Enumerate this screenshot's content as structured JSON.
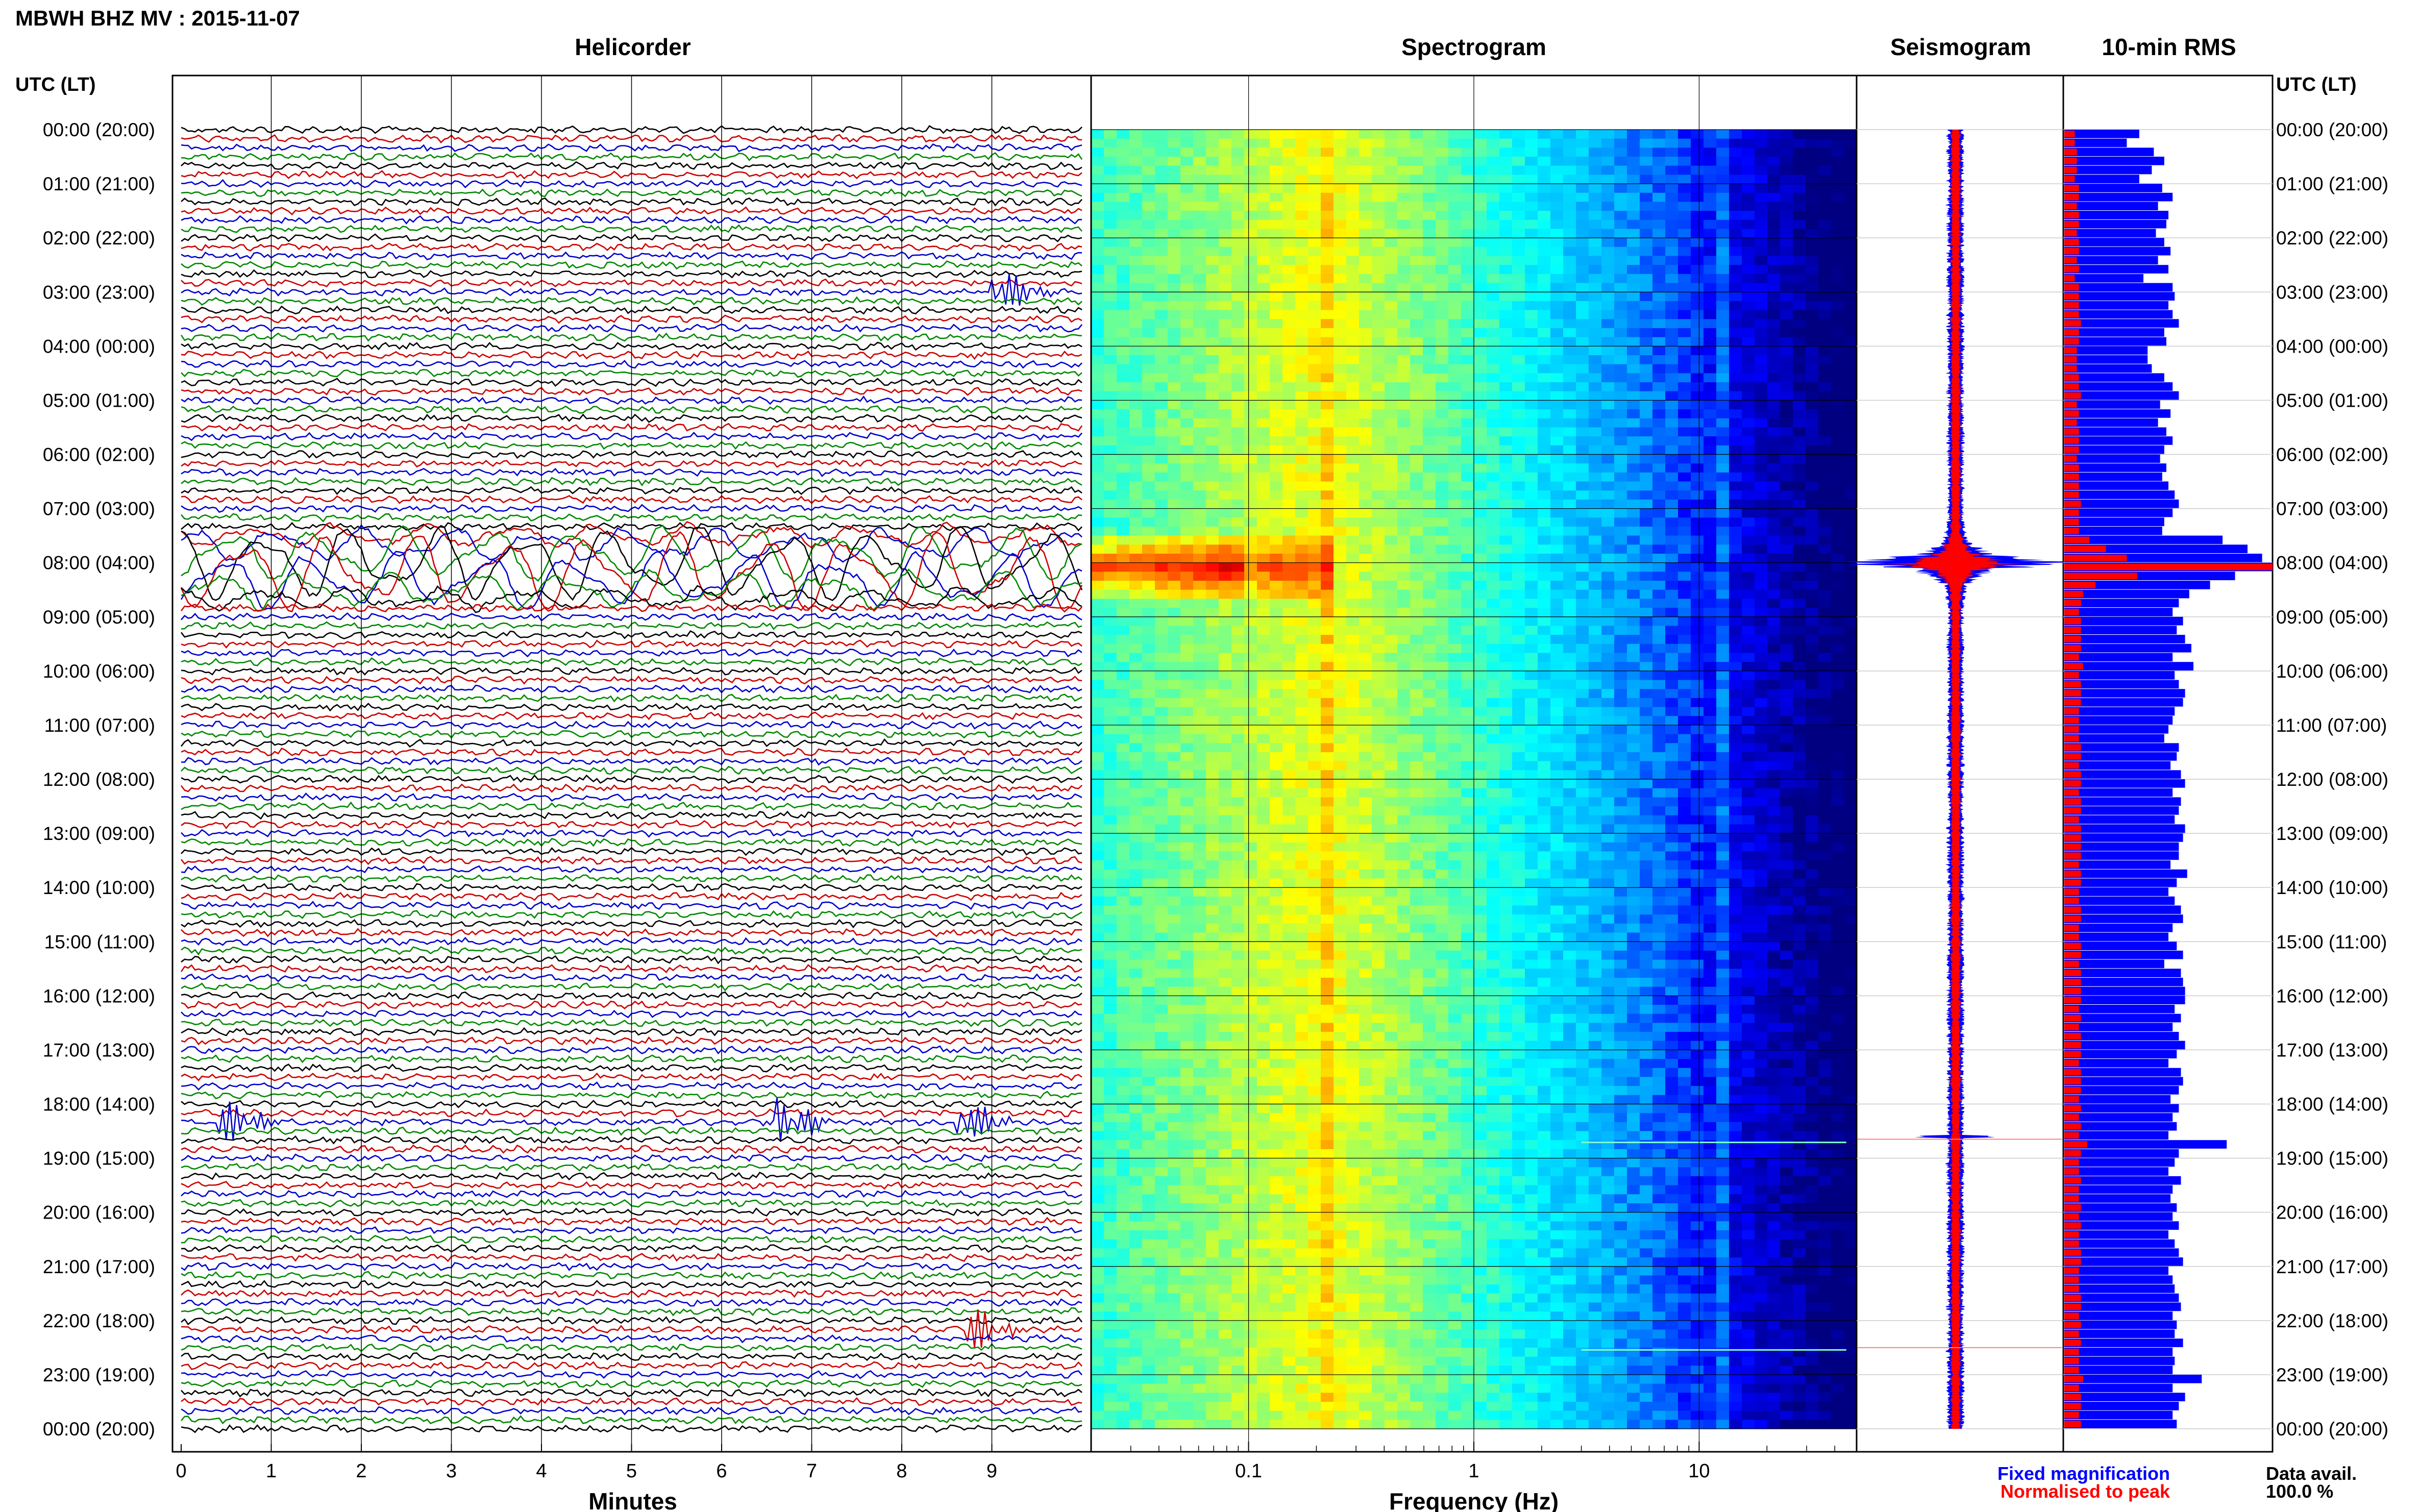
{
  "page": {
    "station": "MBWH BHZ MV : 2015-11-07",
    "left_axis_label": "UTC (LT)",
    "right_axis_label": "UTC (LT)",
    "data_avail_label": "Data avail.",
    "data_avail_value": "100.0 %",
    "legend_fixed": "Fixed magnification",
    "legend_norm": "Normalised to peak",
    "colors": {
      "fixed": "#0000ff",
      "normalised": "#ff0000"
    }
  },
  "time_labels": [
    "00:00 (20:00)",
    "01:00 (21:00)",
    "02:00 (22:00)",
    "03:00 (23:00)",
    "04:00 (00:00)",
    "05:00 (01:00)",
    "06:00 (02:00)",
    "07:00 (03:00)",
    "08:00 (04:00)",
    "09:00 (05:00)",
    "10:00 (06:00)",
    "11:00 (07:00)",
    "12:00 (08:00)",
    "13:00 (09:00)",
    "14:00 (10:00)",
    "15:00 (11:00)",
    "16:00 (12:00)",
    "17:00 (13:00)",
    "18:00 (14:00)",
    "19:00 (15:00)",
    "20:00 (16:00)",
    "21:00 (17:00)",
    "22:00 (18:00)",
    "23:00 (19:00)",
    "00:00 (20:00)"
  ],
  "chart_data": [
    {
      "type": "line",
      "title": "Helicorder",
      "xlabel": "Minutes",
      "x_ticks": [
        "0",
        "1",
        "2",
        "3",
        "4",
        "5",
        "6",
        "7",
        "8",
        "9"
      ],
      "xlim": [
        0,
        10
      ],
      "rows_per_hour": 6,
      "trace_colors": [
        "#000000",
        "#cc0000",
        "#0000cc",
        "#008800"
      ],
      "events": [
        {
          "hour": 7.5,
          "duration_h": 1.2,
          "note": "large long-period oscillation"
        },
        {
          "hour": 18.4,
          "minute": 8.6,
          "color": "#008800"
        },
        {
          "hour": 18.4,
          "minute": 6.6,
          "color": "#008800"
        },
        {
          "hour": 18.4,
          "minute": 0.4,
          "color": "#000000"
        },
        {
          "hour": 22.2,
          "minute": 8.7,
          "color": "#0000cc"
        },
        {
          "hour": 3.0,
          "minute": 9.0,
          "color": "#0000cc"
        }
      ]
    },
    {
      "type": "heatmap",
      "title": "Spectrogram",
      "xlabel": "Frequency (Hz)",
      "x_scale": "log",
      "x_ticks": [
        "0.1",
        "1",
        "10"
      ],
      "xlim": [
        0.02,
        50
      ],
      "colormap": [
        "#000080",
        "#0000ff",
        "#00a0ff",
        "#00ffff",
        "#80ff80",
        "#ffff00",
        "#ff8000",
        "#ff0000",
        "#800000"
      ],
      "microseism_peak_hz": 0.22,
      "event_hours": [
        7.7,
        18.6,
        22.5
      ]
    },
    {
      "type": "area",
      "title": "Seismogram",
      "series": [
        {
          "name": "Fixed magnification",
          "color": "#0000ff"
        },
        {
          "name": "Normalised to peak",
          "color": "#ff0000"
        }
      ],
      "peak_hour": 8.0
    },
    {
      "type": "bar",
      "title": "10-min RMS",
      "orientation": "horizontal",
      "bins_per_hour": 6,
      "fixed_values": [
        0.36,
        0.3,
        0.43,
        0.48,
        0.42,
        0.36,
        0.47,
        0.52,
        0.45,
        0.5,
        0.49,
        0.44,
        0.48,
        0.51,
        0.45,
        0.5,
        0.38,
        0.52,
        0.53,
        0.5,
        0.52,
        0.55,
        0.48,
        0.49,
        0.4,
        0.4,
        0.42,
        0.48,
        0.52,
        0.55,
        0.46,
        0.51,
        0.45,
        0.49,
        0.52,
        0.48,
        0.46,
        0.49,
        0.47,
        0.5,
        0.53,
        0.55,
        0.52,
        0.48,
        0.47,
        0.76,
        0.88,
        0.95,
        1.0,
        0.82,
        0.7,
        0.6,
        0.55,
        0.52,
        0.57,
        0.54,
        0.58,
        0.61,
        0.52,
        0.62,
        0.53,
        0.55,
        0.58,
        0.57,
        0.53,
        0.52,
        0.5,
        0.48,
        0.55,
        0.54,
        0.51,
        0.56,
        0.58,
        0.52,
        0.56,
        0.55,
        0.53,
        0.58,
        0.57,
        0.55,
        0.55,
        0.51,
        0.59,
        0.54,
        0.5,
        0.53,
        0.56,
        0.57,
        0.52,
        0.5,
        0.54,
        0.57,
        0.48,
        0.56,
        0.57,
        0.58,
        0.58,
        0.53,
        0.56,
        0.52,
        0.55,
        0.58,
        0.54,
        0.5,
        0.56,
        0.57,
        0.55,
        0.51,
        0.55,
        0.52,
        0.54,
        0.5,
        0.78,
        0.55,
        0.53,
        0.5,
        0.56,
        0.52,
        0.51,
        0.54,
        0.52,
        0.55,
        0.5,
        0.53,
        0.55,
        0.57,
        0.5,
        0.52,
        0.53,
        0.55,
        0.56,
        0.52,
        0.54,
        0.53,
        0.57,
        0.52,
        0.53,
        0.52,
        0.66,
        0.52,
        0.58,
        0.55,
        0.52,
        0.54
      ],
      "normalised_values": [
        0.05,
        0.05,
        0.06,
        0.06,
        0.06,
        0.05,
        0.07,
        0.07,
        0.06,
        0.07,
        0.07,
        0.06,
        0.07,
        0.07,
        0.06,
        0.07,
        0.05,
        0.07,
        0.07,
        0.07,
        0.07,
        0.08,
        0.07,
        0.07,
        0.06,
        0.06,
        0.06,
        0.07,
        0.07,
        0.08,
        0.06,
        0.07,
        0.06,
        0.07,
        0.07,
        0.07,
        0.06,
        0.07,
        0.07,
        0.07,
        0.07,
        0.08,
        0.07,
        0.07,
        0.07,
        0.12,
        0.2,
        0.3,
        1.0,
        0.35,
        0.15,
        0.09,
        0.08,
        0.07,
        0.08,
        0.08,
        0.08,
        0.08,
        0.07,
        0.09,
        0.07,
        0.08,
        0.08,
        0.08,
        0.07,
        0.07,
        0.07,
        0.07,
        0.08,
        0.08,
        0.07,
        0.08,
        0.08,
        0.07,
        0.08,
        0.08,
        0.07,
        0.08,
        0.08,
        0.08,
        0.08,
        0.07,
        0.08,
        0.08,
        0.07,
        0.07,
        0.08,
        0.08,
        0.07,
        0.07,
        0.08,
        0.08,
        0.07,
        0.08,
        0.08,
        0.08,
        0.08,
        0.07,
        0.08,
        0.07,
        0.08,
        0.08,
        0.08,
        0.07,
        0.08,
        0.08,
        0.08,
        0.07,
        0.08,
        0.07,
        0.08,
        0.07,
        0.11,
        0.08,
        0.07,
        0.07,
        0.08,
        0.07,
        0.07,
        0.08,
        0.07,
        0.08,
        0.07,
        0.07,
        0.08,
        0.08,
        0.07,
        0.07,
        0.07,
        0.08,
        0.08,
        0.07,
        0.08,
        0.07,
        0.08,
        0.07,
        0.07,
        0.07,
        0.09,
        0.07,
        0.08,
        0.08,
        0.07,
        0.08
      ]
    }
  ]
}
